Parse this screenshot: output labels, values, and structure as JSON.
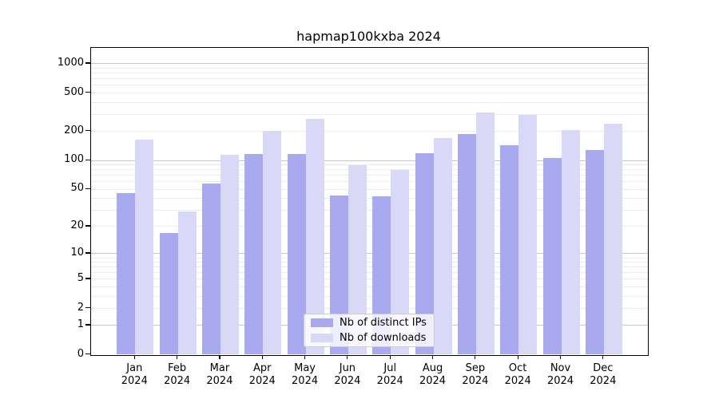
{
  "figure": {
    "title": "hapmap100kxba 2024",
    "background": "#ffffff"
  },
  "chart_data": {
    "type": "bar",
    "title": "hapmap100kxba 2024",
    "subtitle": "",
    "xlabel": "",
    "ylabel": "",
    "scale": "log10(1+x)",
    "grid": "on",
    "legend_position": "bottom-center",
    "categories": [
      "Jan",
      "Feb",
      "Mar",
      "Apr",
      "May",
      "Jun",
      "Jul",
      "Aug",
      "Sep",
      "Oct",
      "Nov",
      "Dec"
    ],
    "year_label": "2024",
    "series": [
      {
        "name": "Nb of distinct IPs",
        "color": "#a9a9f0",
        "values": [
          45,
          17,
          57,
          116,
          117,
          43,
          42,
          119,
          187,
          145,
          105,
          128
        ]
      },
      {
        "name": "Nb of downloads",
        "color": "#d9d9f7",
        "values": [
          165,
          29,
          114,
          204,
          268,
          89,
          79,
          170,
          314,
          295,
          205,
          240
        ]
      }
    ],
    "y_ticks": [
      0,
      1,
      2,
      5,
      10,
      20,
      50,
      100,
      200,
      500,
      1000
    ],
    "ylim": [
      0,
      1460
    ],
    "colors": {
      "major_grid": "#c8c8c8",
      "minor_grid": "#ebebeb",
      "axis": "#000000",
      "legend_border": "#cccccc"
    }
  }
}
